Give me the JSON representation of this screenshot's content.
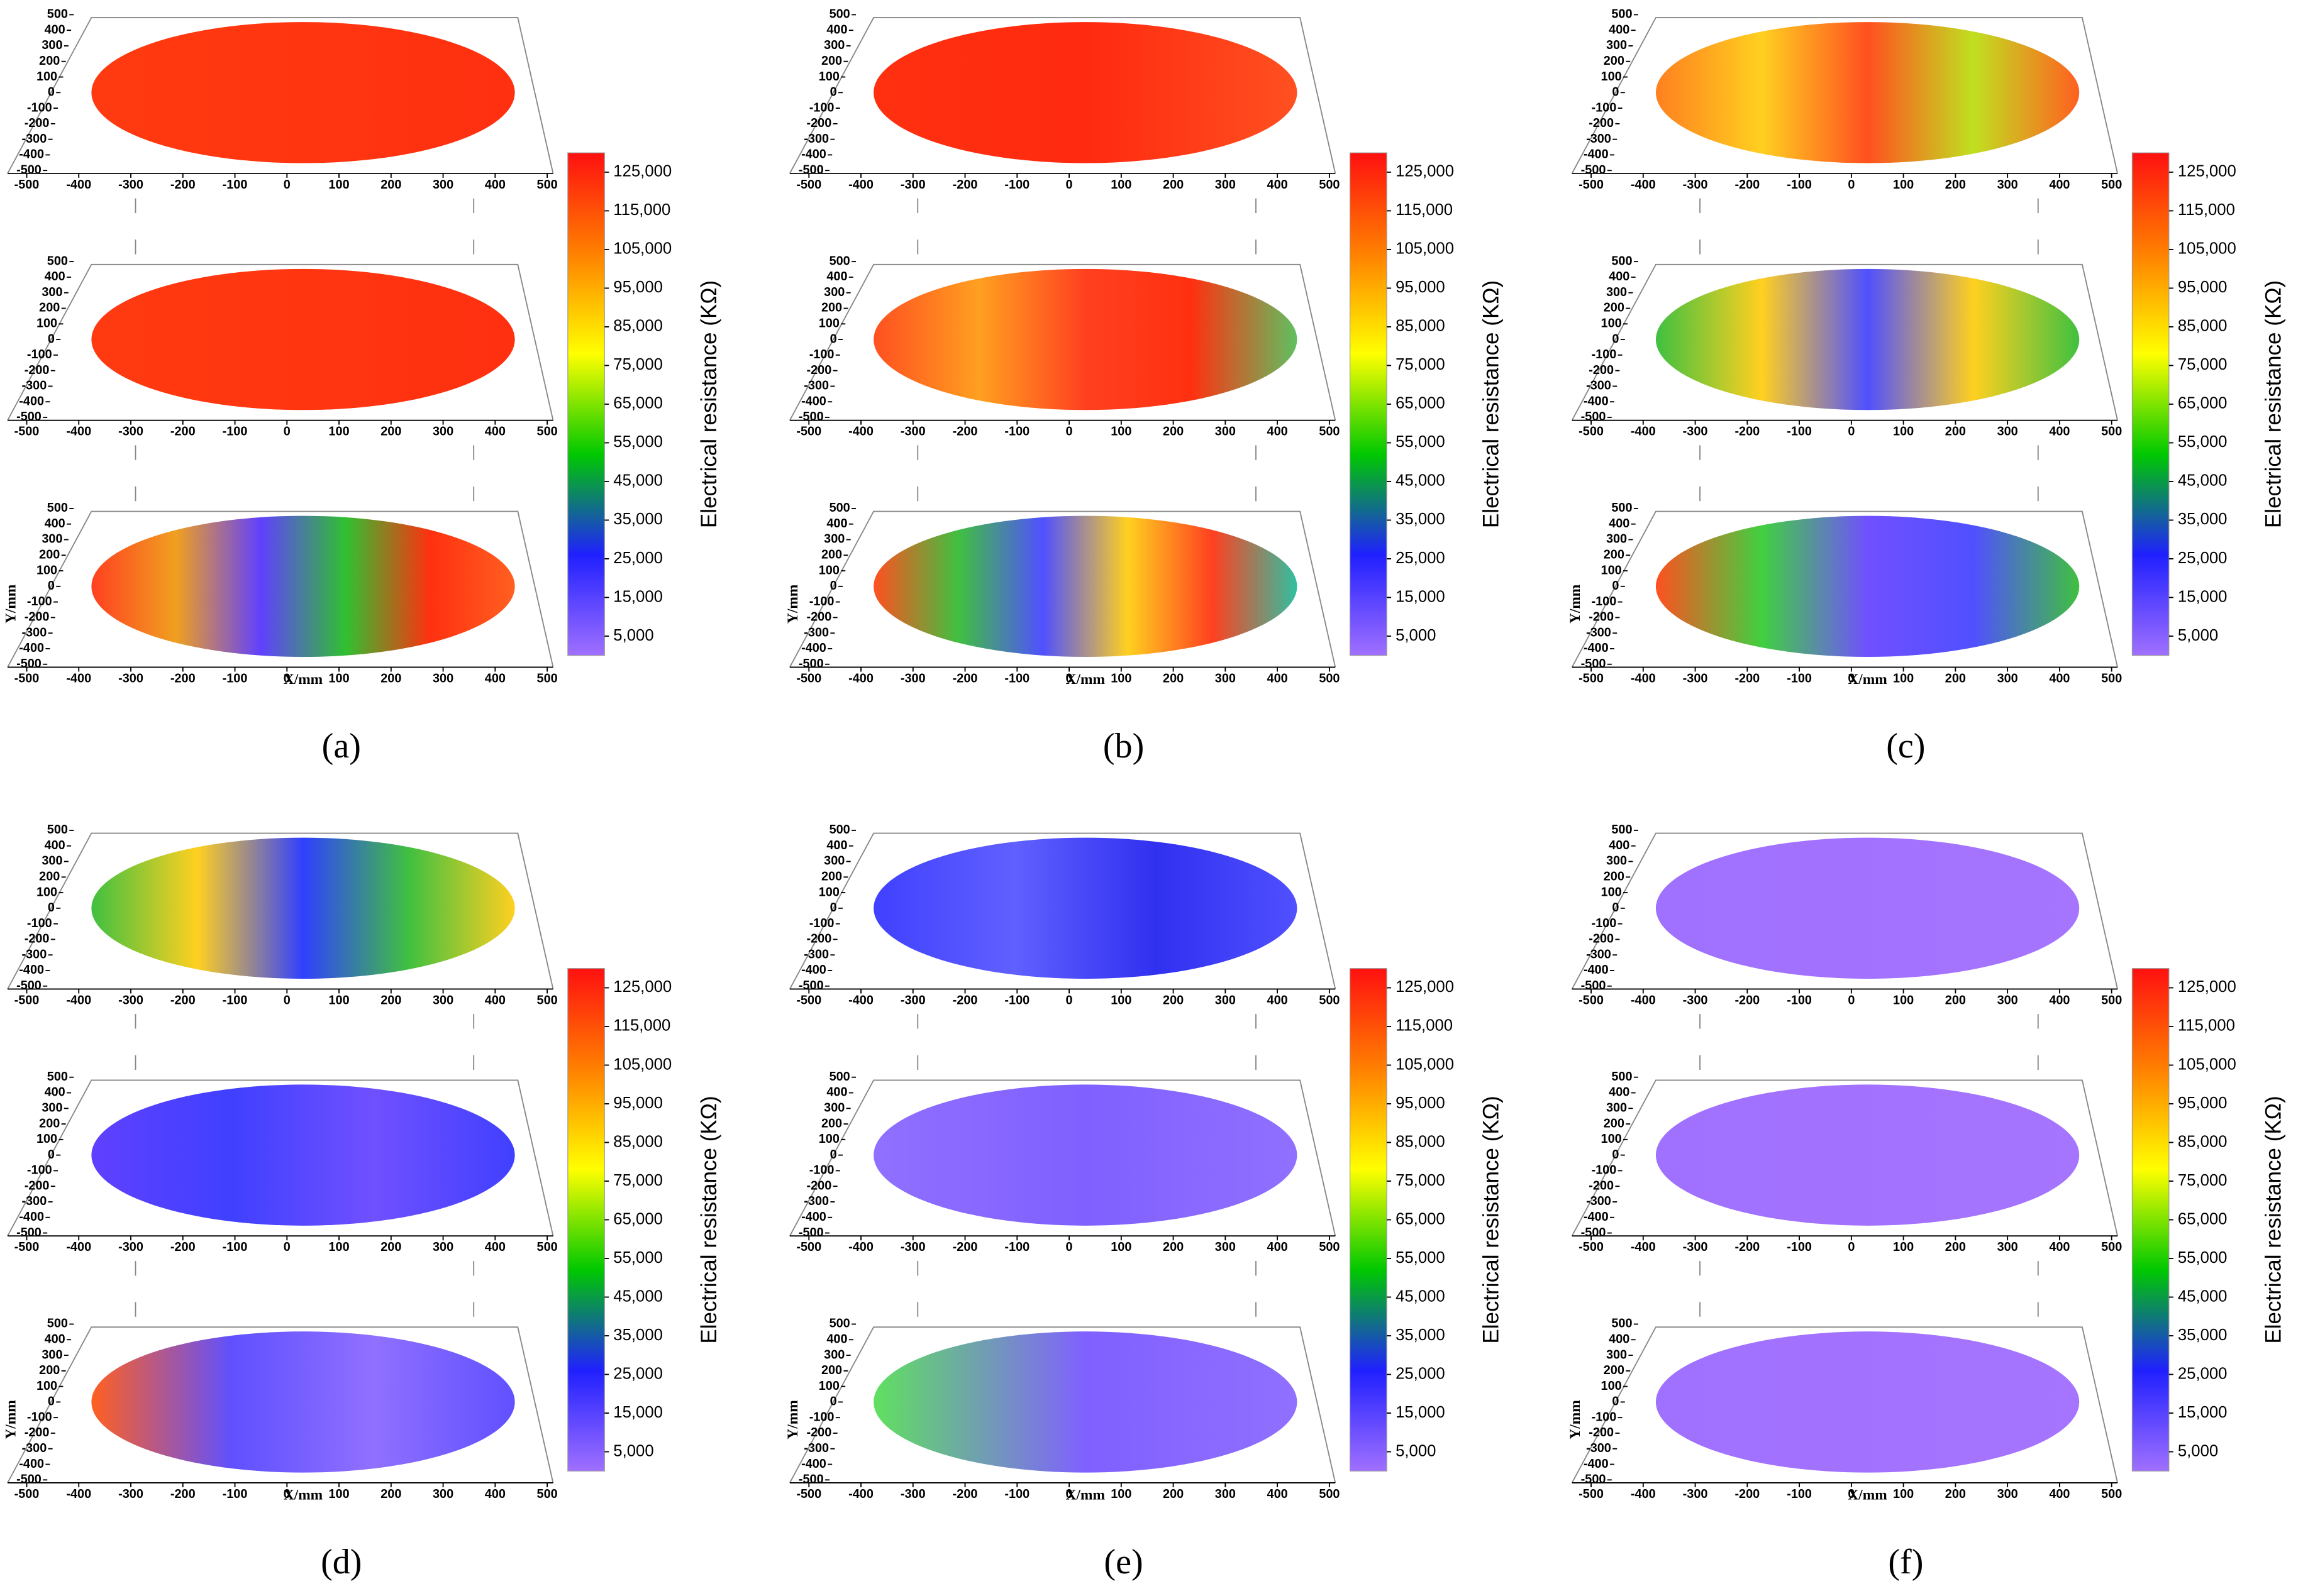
{
  "chart_data": [
    {
      "type": "contour3d",
      "label": "(a)",
      "xlabel": "X/mm",
      "ylabel": "Y/mm",
      "colorbar_label": "Electrical resistance (KΩ)",
      "xlim": [
        -500,
        500
      ],
      "xticks": [
        -500,
        -400,
        -300,
        -200,
        -100,
        0,
        100,
        200,
        300,
        400,
        500
      ],
      "ylim": [
        -500,
        500
      ],
      "yticks": [
        -500,
        -400,
        -300,
        -200,
        -100,
        0,
        100,
        200,
        300,
        400,
        500
      ],
      "clim": [
        0,
        130000
      ],
      "cticks": [
        {
          "value": 5000,
          "label": "5,000"
        },
        {
          "value": 15000,
          "label": "15,000"
        },
        {
          "value": 25000,
          "label": "25,000"
        },
        {
          "value": 35000,
          "label": "35,000"
        },
        {
          "value": 45000,
          "label": "45,000"
        },
        {
          "value": 55000,
          "label": "55,000"
        },
        {
          "value": 65000,
          "label": "65,000"
        },
        {
          "value": 75000,
          "label": "75,000"
        },
        {
          "value": 85000,
          "label": "85,000"
        },
        {
          "value": 95000,
          "label": "95,000"
        },
        {
          "value": 105000,
          "label": "105,000"
        },
        {
          "value": 115000,
          "label": "115,000"
        },
        {
          "value": 125000,
          "label": "125,000"
        }
      ],
      "colorscale": [
        "#a070ff",
        "#2020ff",
        "#00c800",
        "#ffff00",
        "#ff8000",
        "#ff1010"
      ],
      "layers": [
        {
          "colors": [
            "#ff3a10",
            "#ff3010"
          ]
        },
        {
          "colors": [
            "#ff3a10",
            "#ff3010"
          ]
        },
        {
          "colors": [
            "#ff4020",
            "#f0a020",
            "#6040ff",
            "#30c030",
            "#ff3010",
            "#ff6020"
          ]
        }
      ]
    },
    {
      "type": "contour3d",
      "label": "(b)",
      "xlabel": "X/mm",
      "ylabel": "Y/mm",
      "colorbar_label": "Electrical resistance (KΩ)",
      "xlim": [
        -500,
        500
      ],
      "xticks": [
        -500,
        -400,
        -300,
        -200,
        -100,
        0,
        100,
        200,
        300,
        400,
        500
      ],
      "ylim": [
        -500,
        500
      ],
      "yticks": [
        -500,
        -400,
        -300,
        -200,
        -100,
        0,
        100,
        200,
        300,
        400,
        500
      ],
      "clim": [
        0,
        130000
      ],
      "cticks": [
        {
          "value": 5000,
          "label": "5,000"
        },
        {
          "value": 15000,
          "label": "15,000"
        },
        {
          "value": 25000,
          "label": "25,000"
        },
        {
          "value": 35000,
          "label": "35,000"
        },
        {
          "value": 45000,
          "label": "45,000"
        },
        {
          "value": 55000,
          "label": "55,000"
        },
        {
          "value": 65000,
          "label": "65,000"
        },
        {
          "value": 75000,
          "label": "75,000"
        },
        {
          "value": 85000,
          "label": "85,000"
        },
        {
          "value": 95000,
          "label": "95,000"
        },
        {
          "value": 105000,
          "label": "105,000"
        },
        {
          "value": 115000,
          "label": "115,000"
        },
        {
          "value": 125000,
          "label": "125,000"
        }
      ],
      "colorscale": [
        "#a070ff",
        "#2020ff",
        "#00c800",
        "#ffff00",
        "#ff8000",
        "#ff1010"
      ],
      "layers": [
        {
          "colors": [
            "#ff3010",
            "#ff2a10",
            "#ff5020"
          ]
        },
        {
          "colors": [
            "#ff5020",
            "#ffa020",
            "#ff4020",
            "#ff3010",
            "#60c060"
          ]
        },
        {
          "colors": [
            "#ff5020",
            "#40c040",
            "#5050ff",
            "#ffd020",
            "#ff4020",
            "#30c0a0"
          ]
        }
      ]
    },
    {
      "type": "contour3d",
      "label": "(c)",
      "xlabel": "X/mm",
      "ylabel": "Y/mm",
      "colorbar_label": "Electrical resistance (KΩ)",
      "xlim": [
        -500,
        500
      ],
      "xticks": [
        -500,
        -400,
        -300,
        -200,
        -100,
        0,
        100,
        200,
        300,
        400,
        500
      ],
      "ylim": [
        -500,
        500
      ],
      "yticks": [
        -500,
        -400,
        -300,
        -200,
        -100,
        0,
        100,
        200,
        300,
        400,
        500
      ],
      "clim": [
        0,
        130000
      ],
      "cticks": [
        {
          "value": 5000,
          "label": "5,000"
        },
        {
          "value": 15000,
          "label": "15,000"
        },
        {
          "value": 25000,
          "label": "25,000"
        },
        {
          "value": 35000,
          "label": "35,000"
        },
        {
          "value": 45000,
          "label": "45,000"
        },
        {
          "value": 55000,
          "label": "55,000"
        },
        {
          "value": 65000,
          "label": "65,000"
        },
        {
          "value": 75000,
          "label": "75,000"
        },
        {
          "value": 85000,
          "label": "85,000"
        },
        {
          "value": 95000,
          "label": "95,000"
        },
        {
          "value": 105000,
          "label": "105,000"
        },
        {
          "value": 115000,
          "label": "115,000"
        },
        {
          "value": 125000,
          "label": "125,000"
        }
      ],
      "colorscale": [
        "#a070ff",
        "#2020ff",
        "#00c800",
        "#ffff00",
        "#ff8000",
        "#ff1010"
      ],
      "layers": [
        {
          "colors": [
            "#ff8020",
            "#ffd020",
            "#ff5020",
            "#c0e020",
            "#ff6020"
          ]
        },
        {
          "colors": [
            "#40c040",
            "#ffd020",
            "#5050ff",
            "#ffd020",
            "#40c040"
          ]
        },
        {
          "colors": [
            "#ff5020",
            "#40d040",
            "#7050ff",
            "#5050ff",
            "#40c040"
          ]
        }
      ]
    },
    {
      "type": "contour3d",
      "label": "(d)",
      "xlabel": "X/mm",
      "ylabel": "Y/mm",
      "colorbar_label": "Electrical resistance (KΩ)",
      "xlim": [
        -500,
        500
      ],
      "xticks": [
        -500,
        -400,
        -300,
        -200,
        -100,
        0,
        100,
        200,
        300,
        400,
        500
      ],
      "ylim": [
        -500,
        500
      ],
      "yticks": [
        -500,
        -400,
        -300,
        -200,
        -100,
        0,
        100,
        200,
        300,
        400,
        500
      ],
      "clim": [
        0,
        130000
      ],
      "cticks": [
        {
          "value": 5000,
          "label": "5,000"
        },
        {
          "value": 15000,
          "label": "15,000"
        },
        {
          "value": 25000,
          "label": "25,000"
        },
        {
          "value": 35000,
          "label": "35,000"
        },
        {
          "value": 45000,
          "label": "45,000"
        },
        {
          "value": 55000,
          "label": "55,000"
        },
        {
          "value": 65000,
          "label": "65,000"
        },
        {
          "value": 75000,
          "label": "75,000"
        },
        {
          "value": 85000,
          "label": "85,000"
        },
        {
          "value": 95000,
          "label": "95,000"
        },
        {
          "value": 105000,
          "label": "105,000"
        },
        {
          "value": 115000,
          "label": "115,000"
        },
        {
          "value": 125000,
          "label": "125,000"
        }
      ],
      "colorscale": [
        "#a070ff",
        "#2020ff",
        "#00c800",
        "#ffff00",
        "#ff8000",
        "#ff1010"
      ],
      "layers": [
        {
          "colors": [
            "#40c040",
            "#ffd020",
            "#3040ff",
            "#40c040",
            "#ffd020"
          ]
        },
        {
          "colors": [
            "#6040ff",
            "#4040ff",
            "#7050ff",
            "#4040ff"
          ]
        },
        {
          "colors": [
            "#ff6020",
            "#6050ff",
            "#9070ff",
            "#6050ff"
          ]
        }
      ]
    },
    {
      "type": "contour3d",
      "label": "(e)",
      "xlabel": "X/mm",
      "ylabel": "Y/mm",
      "colorbar_label": "Electrical resistance (KΩ)",
      "xlim": [
        -500,
        500
      ],
      "xticks": [
        -500,
        -400,
        -300,
        -200,
        -100,
        0,
        100,
        200,
        300,
        400,
        500
      ],
      "ylim": [
        -500,
        500
      ],
      "yticks": [
        -500,
        -400,
        -300,
        -200,
        -100,
        0,
        100,
        200,
        300,
        400,
        500
      ],
      "clim": [
        0,
        130000
      ],
      "cticks": [
        {
          "value": 5000,
          "label": "5,000"
        },
        {
          "value": 15000,
          "label": "15,000"
        },
        {
          "value": 25000,
          "label": "25,000"
        },
        {
          "value": 35000,
          "label": "35,000"
        },
        {
          "value": 45000,
          "label": "45,000"
        },
        {
          "value": 55000,
          "label": "55,000"
        },
        {
          "value": 65000,
          "label": "65,000"
        },
        {
          "value": 75000,
          "label": "75,000"
        },
        {
          "value": 85000,
          "label": "85,000"
        },
        {
          "value": 95000,
          "label": "95,000"
        },
        {
          "value": 105000,
          "label": "105,000"
        },
        {
          "value": 115000,
          "label": "115,000"
        },
        {
          "value": 125000,
          "label": "125,000"
        }
      ],
      "colorscale": [
        "#a070ff",
        "#2020ff",
        "#00c800",
        "#ffff00",
        "#ff8000",
        "#ff1010"
      ],
      "layers": [
        {
          "colors": [
            "#4040ff",
            "#6060ff",
            "#3030f0",
            "#5050ff"
          ]
        },
        {
          "colors": [
            "#9070ff",
            "#8060ff",
            "#9070ff"
          ]
        },
        {
          "colors": [
            "#60e060",
            "#8060ff",
            "#9070ff"
          ]
        }
      ]
    },
    {
      "type": "contour3d",
      "label": "(f)",
      "xlabel": "X/mm",
      "ylabel": "Y/mm",
      "colorbar_label": "Electrical resistance (KΩ)",
      "xlim": [
        -500,
        500
      ],
      "xticks": [
        -500,
        -400,
        -300,
        -200,
        -100,
        0,
        100,
        200,
        300,
        400,
        500
      ],
      "ylim": [
        -500,
        500
      ],
      "yticks": [
        -500,
        -400,
        -300,
        -200,
        -100,
        0,
        100,
        200,
        300,
        400,
        500
      ],
      "clim": [
        0,
        130000
      ],
      "cticks": [
        {
          "value": 5000,
          "label": "5,000"
        },
        {
          "value": 15000,
          "label": "15,000"
        },
        {
          "value": 25000,
          "label": "25,000"
        },
        {
          "value": 35000,
          "label": "35,000"
        },
        {
          "value": 45000,
          "label": "45,000"
        },
        {
          "value": 55000,
          "label": "55,000"
        },
        {
          "value": 65000,
          "label": "65,000"
        },
        {
          "value": 75000,
          "label": "75,000"
        },
        {
          "value": 85000,
          "label": "85,000"
        },
        {
          "value": 95000,
          "label": "95,000"
        },
        {
          "value": 105000,
          "label": "105,000"
        },
        {
          "value": 115000,
          "label": "115,000"
        },
        {
          "value": 125000,
          "label": "125,000"
        }
      ],
      "colorscale": [
        "#a070ff",
        "#2020ff",
        "#00c800",
        "#ffff00",
        "#ff8000",
        "#ff1010"
      ],
      "layers": [
        {
          "colors": [
            "#a070ff",
            "#a575ff"
          ]
        },
        {
          "colors": [
            "#a070ff",
            "#a575ff"
          ]
        },
        {
          "colors": [
            "#a070ff",
            "#a575ff"
          ]
        }
      ]
    }
  ]
}
